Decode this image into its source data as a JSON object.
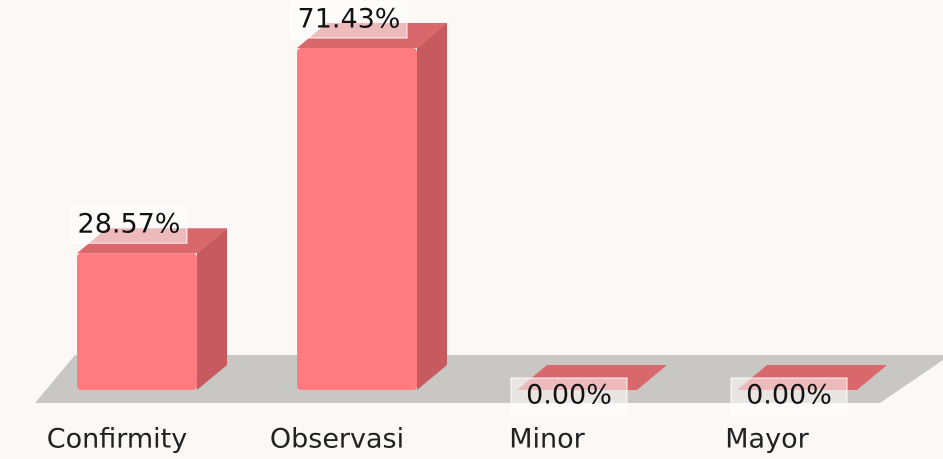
{
  "chart_data": {
    "type": "bar3d",
    "categories": [
      "Confirmity",
      "Observasi",
      "Minor",
      "Mayor"
    ],
    "values": [
      28.57,
      71.43,
      0,
      0
    ],
    "value_labels": [
      "28.57%",
      "71.43%",
      "0.00%",
      "0.00%"
    ],
    "color": "#ff7b7f"
  }
}
